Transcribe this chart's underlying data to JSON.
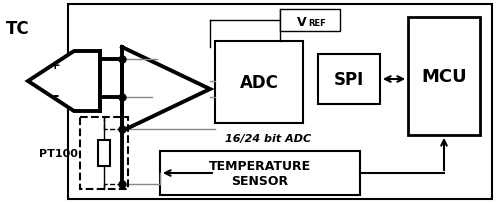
{
  "fig_width": 5.0,
  "fig_height": 2.05,
  "dpi": 100,
  "bg_color": "#ffffff",
  "tc_label": "TC",
  "plus_label": "+",
  "minus_label": "-",
  "pt100_label": "PT100",
  "adc_label": "ADC",
  "spi_label": "SPI",
  "mcu_label": "MCU",
  "vref_label": "V",
  "vref_sub": "REF",
  "temp_line1": "TEMPERATURE",
  "temp_line2": "SENSOR",
  "bitadc_label": "16/24 bit ADC"
}
